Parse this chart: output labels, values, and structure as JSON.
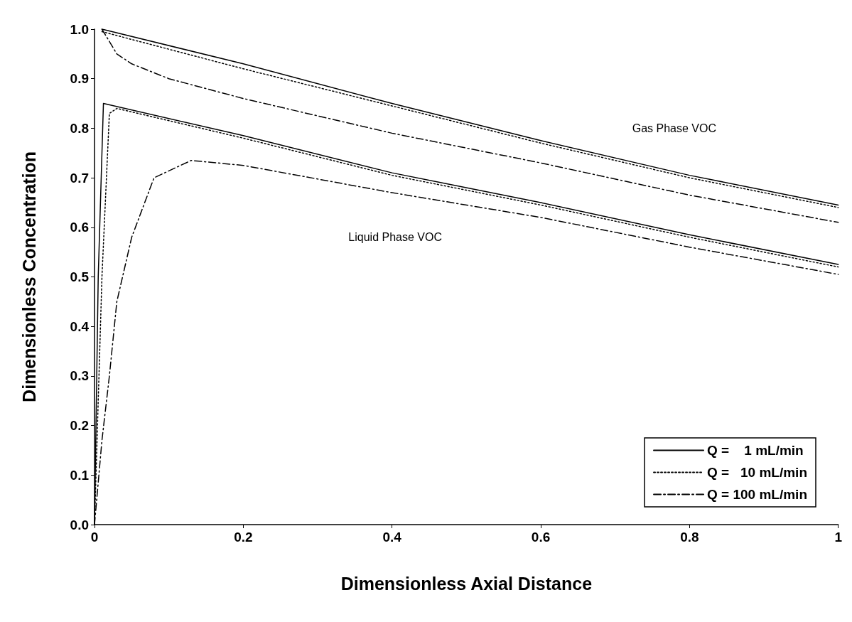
{
  "chart_data": {
    "type": "line",
    "xlabel": "Dimensionless Axial Distance",
    "ylabel": "Dimensionless Concentration",
    "xlim": [
      0,
      1
    ],
    "xticks": [
      0,
      0.2,
      0.4,
      0.6,
      0.8,
      1
    ],
    "ylim": [
      0,
      1
    ],
    "yticks": [
      {
        "value": 0,
        "label": "0.0"
      },
      0.1,
      0.2,
      0.3,
      0.4,
      0.5,
      0.6,
      0.7,
      0.8,
      0.9,
      {
        "value": 1,
        "label": "1.0"
      }
    ],
    "grid": false,
    "legend": "bottom right",
    "marker": "none",
    "annotations": [
      "Gas Phase VOC",
      "Liquid Phase VOC"
    ],
    "series": [
      {
        "name": "Q =    1 mL/min",
        "color": "#000000",
        "line_style": "solid",
        "x": [
          0.01,
          0.2,
          0.4,
          0.6,
          0.8,
          1
        ],
        "values": [
          1.0,
          0.93,
          0.85,
          0.775,
          0.705,
          0.645
        ]
      },
      {
        "name": "Q =   10 mL/min",
        "color": "#000000",
        "line_style": "dotted",
        "x": [
          0.01,
          0.2,
          0.4,
          0.6,
          0.8,
          1
        ],
        "values": [
          0.995,
          0.92,
          0.845,
          0.77,
          0.7,
          0.64
        ]
      },
      {
        "name": "Q = 100 mL/min",
        "color": "#000000",
        "line_style": "dashdot",
        "x": [
          0.01,
          0.03,
          0.05,
          0.1,
          0.2,
          0.4,
          0.6,
          0.8,
          1
        ],
        "values": [
          1.0,
          0.95,
          0.93,
          0.9,
          0.86,
          0.79,
          0.73,
          0.665,
          0.61
        ]
      },
      {
        "color": "#000000",
        "line_style": "solid",
        "x": [
          0,
          0.005,
          0.012,
          0.2,
          0.4,
          0.6,
          0.8,
          1
        ],
        "values": [
          0,
          0.5,
          0.85,
          0.785,
          0.71,
          0.65,
          0.585,
          0.525
        ]
      },
      {
        "color": "#000000",
        "line_style": "dotted",
        "x": [
          0,
          0.01,
          0.02,
          0.03,
          0.2,
          0.4,
          0.6,
          0.8,
          1
        ],
        "values": [
          0,
          0.5,
          0.83,
          0.84,
          0.78,
          0.705,
          0.645,
          0.58,
          0.52
        ]
      },
      {
        "color": "#000000",
        "line_style": "dashdot",
        "x": [
          0,
          0.01,
          0.02,
          0.03,
          0.05,
          0.08,
          0.13,
          0.2,
          0.4,
          0.6,
          0.8,
          1
        ],
        "values": [
          0,
          0.17,
          0.3,
          0.45,
          0.58,
          0.7,
          0.735,
          0.725,
          0.67,
          0.62,
          0.56,
          0.505
        ]
      }
    ]
  }
}
